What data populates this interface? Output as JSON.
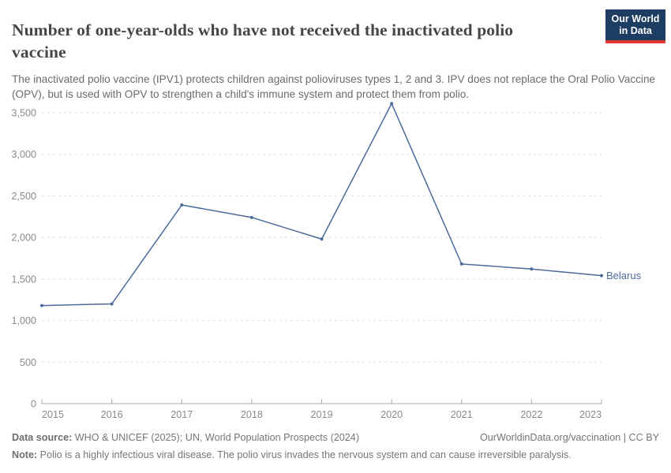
{
  "header": {
    "title": "Number of one-year-olds who have not received the inactivated polio vaccine",
    "subtitle": "The inactivated polio vaccine (IPV1) protects children against polioviruses types 1, 2 and 3. IPV does not replace the Oral Polio Vaccine (OPV), but is used with OPV to strengthen a child's immune system and protect them from polio.",
    "logo": {
      "line1": "Our World",
      "line2": "in Data",
      "bg_color": "#1d3d63",
      "bar_color": "#dc3a2f"
    }
  },
  "chart_data": {
    "type": "line",
    "title": "Number of one-year-olds who have not received the inactivated polio vaccine",
    "x": [
      2015,
      2016,
      2017,
      2018,
      2019,
      2020,
      2021,
      2022,
      2023
    ],
    "xtick_labels": [
      "2015",
      "2016",
      "2017",
      "2018",
      "2019",
      "2020",
      "2021",
      "2022",
      "2023"
    ],
    "series": [
      {
        "name": "Belarus",
        "color": "#4C6A9C",
        "values": [
          1180,
          1200,
          2390,
          2240,
          1980,
          3610,
          1680,
          1620,
          1540
        ]
      }
    ],
    "ylim": [
      0,
      3500
    ],
    "yticks": [
      0,
      500,
      1000,
      1500,
      2000,
      2500,
      3000,
      3500
    ],
    "ytick_labels": [
      "0",
      "500",
      "1,000",
      "1,500",
      "2,000",
      "2,500",
      "3,000",
      "3,500"
    ],
    "grid": "horizontal-dashed",
    "legend": "end-of-line-label",
    "markers": true
  },
  "footer": {
    "data_source_label": "Data source:",
    "data_source": " WHO & UNICEF (2025); UN, World Population Prospects (2024)",
    "link": "OurWorldinData.org/vaccination | CC BY",
    "note_label": "Note:",
    "note": " Polio is a highly infectious viral disease. The polio virus invades the nervous system and can cause irreversible paralysis."
  }
}
